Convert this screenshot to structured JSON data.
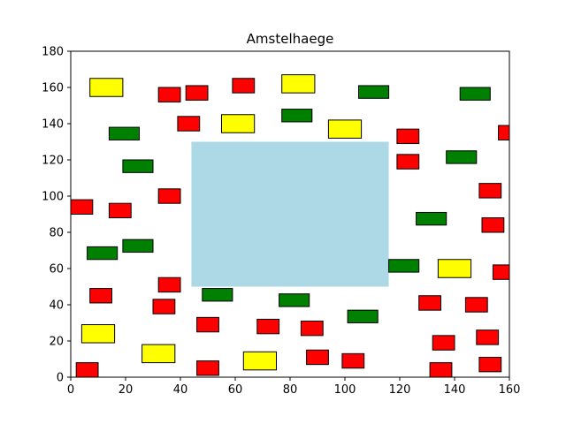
{
  "chart_data": {
    "type": "scatter",
    "title": "Amstelhaege",
    "xlabel": "",
    "ylabel": "",
    "xlim": [
      0,
      160
    ],
    "ylim": [
      0,
      180
    ],
    "xticks": [
      "0",
      "20",
      "40",
      "60",
      "80",
      "100",
      "120",
      "140",
      "160"
    ],
    "yticks": [
      "0",
      "20",
      "40",
      "60",
      "80",
      "100",
      "120",
      "140",
      "160",
      "180"
    ],
    "grid": false,
    "colors": {
      "red": "#ff0000",
      "green": "#008000",
      "yellow": "#ffff00",
      "water": "#add8e6",
      "edge": "#000000"
    },
    "water": [
      {
        "x0": 44,
        "y0": 50,
        "x1": 116,
        "y1": 130
      }
    ],
    "houses": [
      {
        "color": "red",
        "x0": 2,
        "y0": 0,
        "x1": 10,
        "y1": 8
      },
      {
        "color": "red",
        "x0": 0,
        "y0": 90,
        "x1": 8,
        "y1": 98
      },
      {
        "color": "red",
        "x0": 7,
        "y0": 41,
        "x1": 15,
        "y1": 49
      },
      {
        "color": "red",
        "x0": 14,
        "y0": 88,
        "x1": 22,
        "y1": 96
      },
      {
        "color": "red",
        "x0": 30,
        "y0": 35,
        "x1": 38,
        "y1": 43
      },
      {
        "color": "red",
        "x0": 32,
        "y0": 96,
        "x1": 40,
        "y1": 104
      },
      {
        "color": "red",
        "x0": 32,
        "y0": 152,
        "x1": 40,
        "y1": 160
      },
      {
        "color": "red",
        "x0": 32,
        "y0": 47,
        "x1": 40,
        "y1": 55
      },
      {
        "color": "red",
        "x0": 39,
        "y0": 136,
        "x1": 47,
        "y1": 144
      },
      {
        "color": "red",
        "x0": 42,
        "y0": 153,
        "x1": 50,
        "y1": 161
      },
      {
        "color": "red",
        "x0": 46,
        "y0": 25,
        "x1": 54,
        "y1": 33
      },
      {
        "color": "red",
        "x0": 46,
        "y0": 1,
        "x1": 54,
        "y1": 9
      },
      {
        "color": "red",
        "x0": 59,
        "y0": 157,
        "x1": 67,
        "y1": 165
      },
      {
        "color": "red",
        "x0": 68,
        "y0": 24,
        "x1": 76,
        "y1": 32
      },
      {
        "color": "red",
        "x0": 84,
        "y0": 23,
        "x1": 92,
        "y1": 31
      },
      {
        "color": "red",
        "x0": 86,
        "y0": 7,
        "x1": 94,
        "y1": 15
      },
      {
        "color": "red",
        "x0": 99,
        "y0": 5,
        "x1": 107,
        "y1": 13
      },
      {
        "color": "red",
        "x0": 119,
        "y0": 129,
        "x1": 127,
        "y1": 137
      },
      {
        "color": "red",
        "x0": 119,
        "y0": 115,
        "x1": 127,
        "y1": 123
      },
      {
        "color": "red",
        "x0": 127,
        "y0": 37,
        "x1": 135,
        "y1": 45
      },
      {
        "color": "red",
        "x0": 131,
        "y0": 0,
        "x1": 139,
        "y1": 8
      },
      {
        "color": "red",
        "x0": 132,
        "y0": 15,
        "x1": 140,
        "y1": 23
      },
      {
        "color": "red",
        "x0": 144,
        "y0": 36,
        "x1": 152,
        "y1": 44
      },
      {
        "color": "red",
        "x0": 148,
        "y0": 18,
        "x1": 156,
        "y1": 26
      },
      {
        "color": "red",
        "x0": 149,
        "y0": 3,
        "x1": 157,
        "y1": 11
      },
      {
        "color": "red",
        "x0": 149,
        "y0": 99,
        "x1": 157,
        "y1": 107
      },
      {
        "color": "red",
        "x0": 150,
        "y0": 80,
        "x1": 158,
        "y1": 88
      },
      {
        "color": "red",
        "x0": 154,
        "y0": 54,
        "x1": 162,
        "y1": 62
      },
      {
        "color": "red",
        "x0": 156,
        "y0": 131,
        "x1": 164,
        "y1": 139
      },
      {
        "color": "green",
        "x0": 6,
        "y0": 65,
        "x1": 17,
        "y1": 72
      },
      {
        "color": "green",
        "x0": 14,
        "y0": 131,
        "x1": 25,
        "y1": 138
      },
      {
        "color": "green",
        "x0": 19,
        "y0": 113,
        "x1": 30,
        "y1": 120
      },
      {
        "color": "green",
        "x0": 19,
        "y0": 69,
        "x1": 30,
        "y1": 76
      },
      {
        "color": "green",
        "x0": 48,
        "y0": 42,
        "x1": 59,
        "y1": 49
      },
      {
        "color": "green",
        "x0": 77,
        "y0": 141,
        "x1": 88,
        "y1": 148
      },
      {
        "color": "green",
        "x0": 76,
        "y0": 39,
        "x1": 87,
        "y1": 46
      },
      {
        "color": "green",
        "x0": 101,
        "y0": 30,
        "x1": 112,
        "y1": 37
      },
      {
        "color": "green",
        "x0": 105,
        "y0": 154,
        "x1": 116,
        "y1": 161
      },
      {
        "color": "green",
        "x0": 116,
        "y0": 58,
        "x1": 127,
        "y1": 65
      },
      {
        "color": "green",
        "x0": 126,
        "y0": 84,
        "x1": 137,
        "y1": 91
      },
      {
        "color": "green",
        "x0": 137,
        "y0": 118,
        "x1": 148,
        "y1": 125
      },
      {
        "color": "green",
        "x0": 142,
        "y0": 153,
        "x1": 153,
        "y1": 160
      },
      {
        "color": "yellow",
        "x0": 4,
        "y0": 19,
        "x1": 16,
        "y1": 29
      },
      {
        "color": "yellow",
        "x0": 7,
        "y0": 155,
        "x1": 19,
        "y1": 165
      },
      {
        "color": "yellow",
        "x0": 26,
        "y0": 8,
        "x1": 38,
        "y1": 18
      },
      {
        "color": "yellow",
        "x0": 55,
        "y0": 135,
        "x1": 67,
        "y1": 145
      },
      {
        "color": "yellow",
        "x0": 63,
        "y0": 4,
        "x1": 75,
        "y1": 14
      },
      {
        "color": "yellow",
        "x0": 77,
        "y0": 157,
        "x1": 89,
        "y1": 167
      },
      {
        "color": "yellow",
        "x0": 94,
        "y0": 132,
        "x1": 106,
        "y1": 142
      },
      {
        "color": "yellow",
        "x0": 134,
        "y0": 55,
        "x1": 146,
        "y1": 65
      }
    ]
  }
}
